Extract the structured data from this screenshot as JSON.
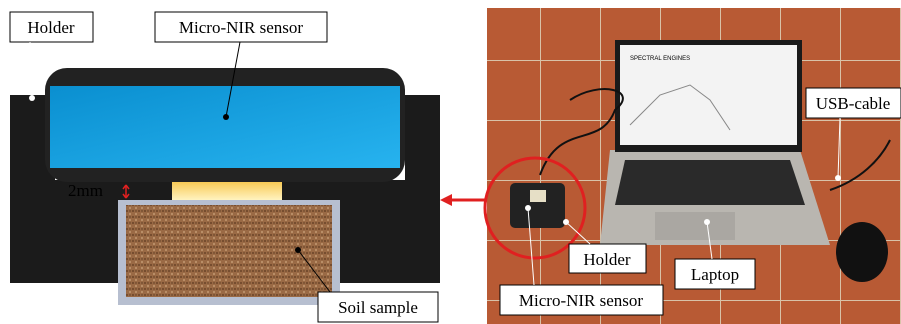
{
  "diagram": {
    "labels": {
      "holder": "Holder",
      "sensor": "Micro-NIR sensor",
      "gap": "2mm",
      "soil": "Soil sample"
    }
  },
  "photo": {
    "labels": {
      "usb": "USB-cable",
      "holder": "Holder",
      "laptop": "Laptop",
      "sensor": "Micro-NIR sensor"
    },
    "screen_brand": "SPECTRAL ENGINES"
  }
}
